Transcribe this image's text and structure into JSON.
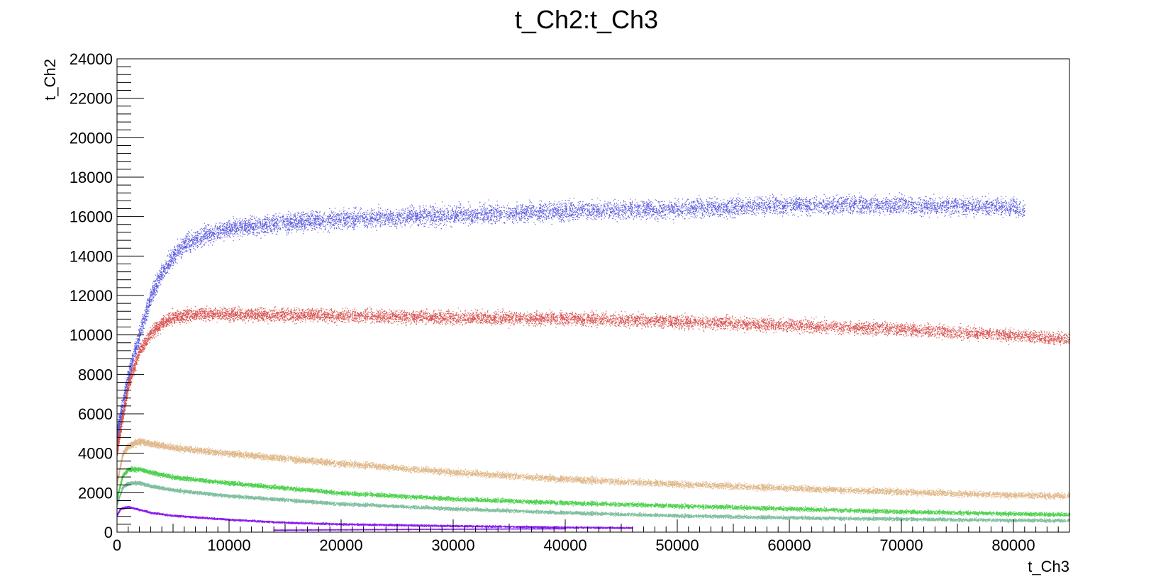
{
  "chart_data": {
    "type": "scatter",
    "title": "t_Ch2:t_Ch3",
    "xlabel": "t_Ch3",
    "ylabel": "t_Ch2",
    "xlim": [
      0,
      85000
    ],
    "ylim": [
      0,
      24000
    ],
    "x_ticks": [
      "0",
      "10000",
      "20000",
      "30000",
      "40000",
      "50000",
      "60000",
      "70000",
      "80000"
    ],
    "y_ticks": [
      "0",
      "2000",
      "4000",
      "6000",
      "8000",
      "10000",
      "12000",
      "14000",
      "16000",
      "18000",
      "20000",
      "22000",
      "24000"
    ],
    "grid": false,
    "series": [
      {
        "color": "#5a5ae0",
        "x": [
          0,
          1000,
          2000,
          3000,
          4000,
          5000,
          6000,
          8000,
          10000,
          15000,
          20000,
          30000,
          40000,
          50000,
          60000,
          70000,
          80000,
          81000
        ],
        "y": [
          5000,
          8000,
          10000,
          12000,
          13200,
          14000,
          14600,
          15100,
          15400,
          15700,
          15900,
          16100,
          16300,
          16400,
          16600,
          16600,
          16500,
          16300
        ],
        "spread": 500
      },
      {
        "color": "#d9534f",
        "x": [
          0,
          1000,
          2000,
          3000,
          4000,
          5000,
          6000,
          8000,
          10000,
          20000,
          30000,
          40000,
          50000,
          60000,
          70000,
          80000,
          85000
        ],
        "y": [
          4300,
          7500,
          9200,
          10100,
          10600,
          10900,
          11000,
          11100,
          11050,
          11000,
          10900,
          10850,
          10700,
          10500,
          10300,
          10000,
          9800
        ],
        "spread": 350
      },
      {
        "color": "#e0b88a",
        "x": [
          0,
          500,
          1000,
          2000,
          3000,
          5000,
          10000,
          20000,
          30000,
          40000,
          50000,
          60000,
          70000,
          80000,
          85000
        ],
        "y": [
          2600,
          4000,
          4400,
          4600,
          4500,
          4300,
          4000,
          3500,
          3050,
          2700,
          2450,
          2250,
          2050,
          1900,
          1850
        ],
        "spread": 170
      },
      {
        "color": "#4fd14f",
        "x": [
          0,
          500,
          1000,
          2000,
          3000,
          5000,
          10000,
          20000,
          30000,
          40000,
          50000,
          60000,
          70000,
          80000,
          85000
        ],
        "y": [
          1800,
          2900,
          3200,
          3200,
          3050,
          2800,
          2500,
          2000,
          1700,
          1500,
          1350,
          1200,
          1050,
          950,
          900
        ],
        "spread": 110
      },
      {
        "color": "#7fbf9f",
        "x": [
          0,
          500,
          1000,
          2000,
          3000,
          5000,
          10000,
          20000,
          30000,
          40000,
          50000,
          60000,
          70000,
          80000,
          85000
        ],
        "y": [
          1500,
          2300,
          2500,
          2500,
          2350,
          2150,
          1850,
          1450,
          1200,
          1000,
          850,
          750,
          680,
          620,
          600
        ],
        "spread": 90
      },
      {
        "color": "#8b1ef0",
        "x": [
          0,
          300,
          1000,
          2000,
          3000,
          5000,
          10000,
          15000,
          20000,
          30000,
          40000,
          46000
        ],
        "y": [
          900,
          1200,
          1300,
          1150,
          1000,
          850,
          650,
          500,
          420,
          330,
          260,
          230
        ],
        "spread": 45
      },
      {
        "color": "#8b1ef0",
        "x": [
          14000,
          20000,
          30000,
          40000
        ],
        "y": [
          120,
          140,
          170,
          190
        ],
        "spread": 15
      }
    ]
  }
}
